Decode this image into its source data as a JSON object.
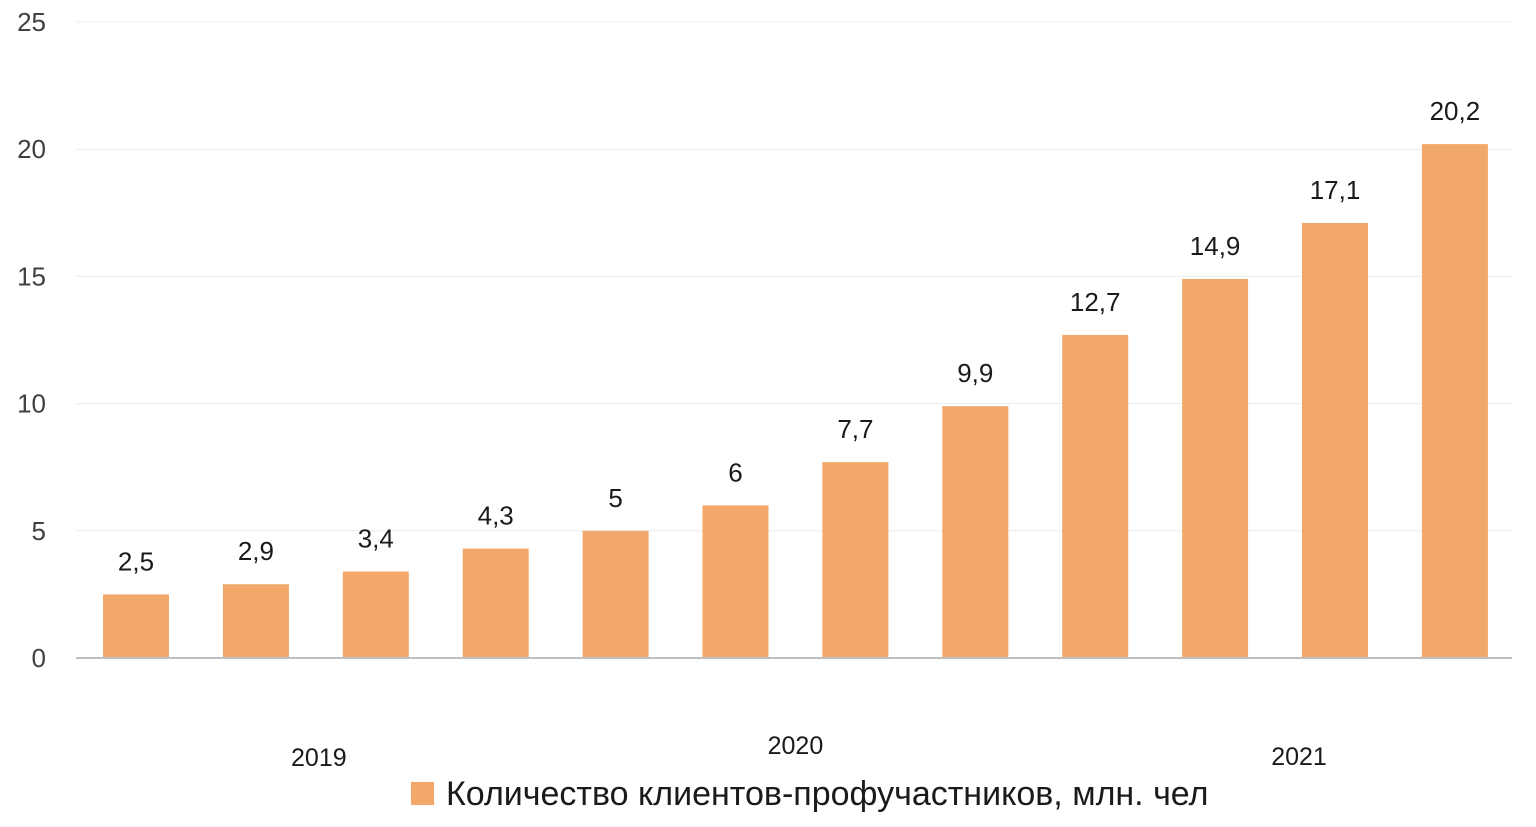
{
  "chart_data": {
    "type": "bar",
    "categories": [
      "",
      "",
      "",
      "",
      "",
      "",
      "",
      "",
      "",
      "",
      "",
      ""
    ],
    "values": [
      2.5,
      2.9,
      3.4,
      4.3,
      5,
      6,
      7.7,
      9.9,
      12.7,
      14.9,
      17.1,
      20.2
    ],
    "value_labels": [
      "2,5",
      "2,9",
      "3,4",
      "4,3",
      "5",
      "6",
      "7,7",
      "9,9",
      "12,7",
      "14,9",
      "17,1",
      "20,2"
    ],
    "year_groups": [
      {
        "label": "2019",
        "center_index": 1.5
      },
      {
        "label": "2020",
        "center_index": 5.5
      },
      {
        "label": "2021",
        "center_index": 9.7
      }
    ],
    "ylim": [
      0,
      25
    ],
    "yticks": [
      0,
      5,
      10,
      15,
      20,
      25
    ],
    "grid": true,
    "legend": {
      "position": "bottom",
      "entries": [
        "Количество клиентов-профучастников, млн. чел"
      ]
    },
    "series": [
      {
        "name": "Количество клиентов-профучастников, млн. чел",
        "color": "#f2a86b"
      }
    ],
    "title": "",
    "xlabel": "",
    "ylabel": ""
  }
}
